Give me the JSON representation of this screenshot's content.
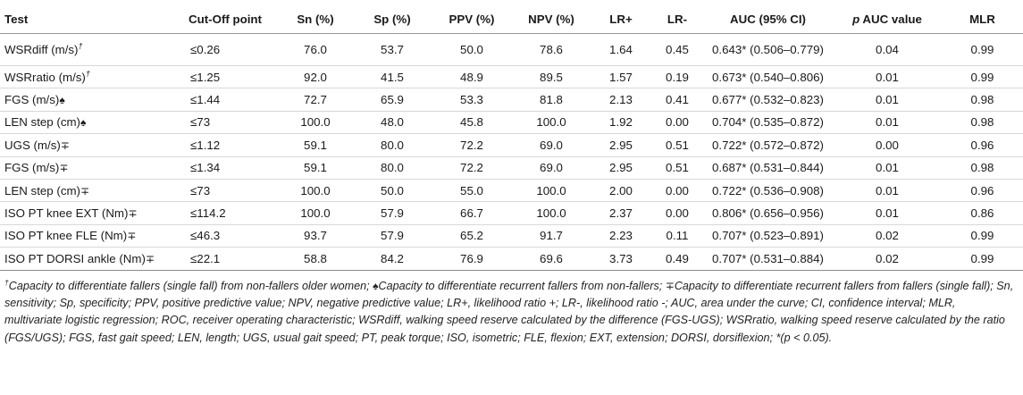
{
  "headers": {
    "test": "Test",
    "cutoff": "Cut-Off point",
    "sn": "Sn (%)",
    "sp": "Sp (%)",
    "ppv": "PPV (%)",
    "npv": "NPV (%)",
    "lrp": "LR+",
    "lrm": "LR-",
    "auc": "AUC (95% CI)",
    "pauc_p": "p",
    "pauc_rest": " AUC value",
    "mlr": "MLR"
  },
  "rows": [
    {
      "test": "WSRdiff (m/s)",
      "mark": "†",
      "cutoff": "≤0.26",
      "sn": "76.0",
      "sp": "53.7",
      "ppv": "50.0",
      "npv": "78.6",
      "lrp": "1.64",
      "lrm": "0.45",
      "auc": "0.643* (0.506–0.779)",
      "pauc": "0.04",
      "mlr": "0.99"
    },
    {
      "test": "WSRratio (m/s)",
      "mark": "†",
      "cutoff": "≤1.25",
      "sn": "92.0",
      "sp": "41.5",
      "ppv": "48.9",
      "npv": "89.5",
      "lrp": "1.57",
      "lrm": "0.19",
      "auc": "0.673* (0.540–0.806)",
      "pauc": "0.01",
      "mlr": "0.99"
    },
    {
      "test": "FGS (m/s)",
      "mark": "♠",
      "cutoff": "≤1.44",
      "sn": "72.7",
      "sp": "65.9",
      "ppv": "53.3",
      "npv": "81.8",
      "lrp": "2.13",
      "lrm": "0.41",
      "auc": "0.677* (0.532–0.823)",
      "pauc": "0.01",
      "mlr": "0.98"
    },
    {
      "test": "LEN step (cm)",
      "mark": "♠",
      "cutoff": "≤73",
      "sn": "100.0",
      "sp": "48.0",
      "ppv": "45.8",
      "npv": "100.0",
      "lrp": "1.92",
      "lrm": "0.00",
      "auc": "0.704* (0.535–0.872)",
      "pauc": "0.01",
      "mlr": "0.98"
    },
    {
      "test": "UGS (m/s)",
      "mark": "∓",
      "cutoff": "≤1.12",
      "sn": "59.1",
      "sp": "80.0",
      "ppv": "72.2",
      "npv": "69.0",
      "lrp": "2.95",
      "lrm": "0.51",
      "auc": "0.722* (0.572–0.872)",
      "pauc": "0.00",
      "mlr": "0.96"
    },
    {
      "test": "FGS (m/s)",
      "mark": "∓",
      "cutoff": "≤1.34",
      "sn": "59.1",
      "sp": "80.0",
      "ppv": "72.2",
      "npv": "69.0",
      "lrp": "2.95",
      "lrm": "0.51",
      "auc": "0.687* (0.531–0.844)",
      "pauc": "0.01",
      "mlr": "0.98"
    },
    {
      "test": "LEN step (cm)",
      "mark": "∓",
      "cutoff": "≤73",
      "sn": "100.0",
      "sp": "50.0",
      "ppv": "55.0",
      "npv": "100.0",
      "lrp": "2.00",
      "lrm": "0.00",
      "auc": "0.722* (0.536–0.908)",
      "pauc": "0.01",
      "mlr": "0.96"
    },
    {
      "test": "ISO PT knee EXT (Nm)",
      "mark": "∓",
      "cutoff": "≤114.2",
      "sn": "100.0",
      "sp": "57.9",
      "ppv": "66.7",
      "npv": "100.0",
      "lrp": "2.37",
      "lrm": "0.00",
      "auc": "0.806* (0.656–0.956)",
      "pauc": "0.01",
      "mlr": "0.86"
    },
    {
      "test": "ISO PT knee FLE (Nm)",
      "mark": "∓",
      "cutoff": "≤46.3",
      "sn": "93.7",
      "sp": "57.9",
      "ppv": "65.2",
      "npv": "91.7",
      "lrp": "2.23",
      "lrm": "0.11",
      "auc": "0.707* (0.523–0.891)",
      "pauc": "0.02",
      "mlr": "0.99"
    },
    {
      "test": "ISO PT DORSI ankle (Nm)",
      "mark": "∓",
      "cutoff": "≤22.1",
      "sn": "58.8",
      "sp": "84.2",
      "ppv": "76.9",
      "npv": "69.6",
      "lrp": "3.73",
      "lrm": "0.49",
      "auc": "0.707* (0.531–0.884)",
      "pauc": "0.02",
      "mlr": "0.99"
    }
  ],
  "footnote": {
    "dagger": "†",
    "dagger_text": "Capacity to differentiate fallers (single fall) from non-fallers older women; ",
    "spade": "♠",
    "spade_text": "Capacity to differentiate recurrent fallers from non-fallers; ",
    "mp": "∓",
    "mp_text": "Capacity to differentiate recurrent fallers from fallers (single fall); Sn, sensitivity; Sp, specificity; PPV, positive predictive value; NPV, negative predictive value; LR+, likelihood ratio +; LR-, likelihood ratio -; AUC, area under the curve; CI, confidence interval; MLR, multivariate logistic regression; ROC, receiver operating characteristic; WSRdiff, walking speed reserve calculated by the difference (FGS-UGS); WSRratio, walking speed reserve calculated by the ratio (FGS/UGS); FGS, fast gait speed; LEN, length; UGS, usual gait speed; PT, peak torque; ISO, isometric; FLE, flexion; EXT, extension; DORSI, dorsiflexion; *(p < 0.05)."
  }
}
